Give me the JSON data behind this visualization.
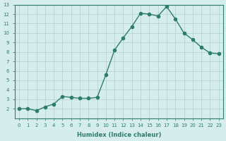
{
  "x": [
    0,
    1,
    2,
    3,
    4,
    5,
    6,
    7,
    8,
    9,
    10,
    11,
    12,
    13,
    14,
    15,
    16,
    17,
    18,
    19,
    20,
    21,
    22,
    23
  ],
  "y": [
    2.0,
    2.0,
    1.8,
    2.2,
    2.5,
    3.3,
    3.2,
    3.1,
    3.1,
    3.2,
    5.6,
    8.2,
    9.5,
    10.7,
    12.1,
    12.0,
    11.8,
    12.8,
    11.5,
    10.0,
    9.3,
    8.5,
    7.9,
    7.8
  ],
  "line_color": "#2d7d6e",
  "marker": "o",
  "marker_size": 3,
  "bg_color": "#d6eeeb",
  "grid_color": "#b0cfc8",
  "xlabel": "Humidex (Indice chaleur)",
  "ylabel": "",
  "xlim": [
    -0.5,
    23.5
  ],
  "ylim": [
    1,
    13
  ],
  "yticks": [
    2,
    3,
    4,
    5,
    6,
    7,
    8,
    9,
    10,
    11,
    12,
    13
  ],
  "xticks": [
    0,
    1,
    2,
    3,
    4,
    5,
    6,
    7,
    8,
    9,
    10,
    11,
    12,
    13,
    14,
    15,
    16,
    17,
    18,
    19,
    20,
    21,
    22,
    23
  ],
  "tick_color": "#2d7d6e",
  "label_color": "#2d7d6e",
  "spine_color": "#2d7d6e"
}
